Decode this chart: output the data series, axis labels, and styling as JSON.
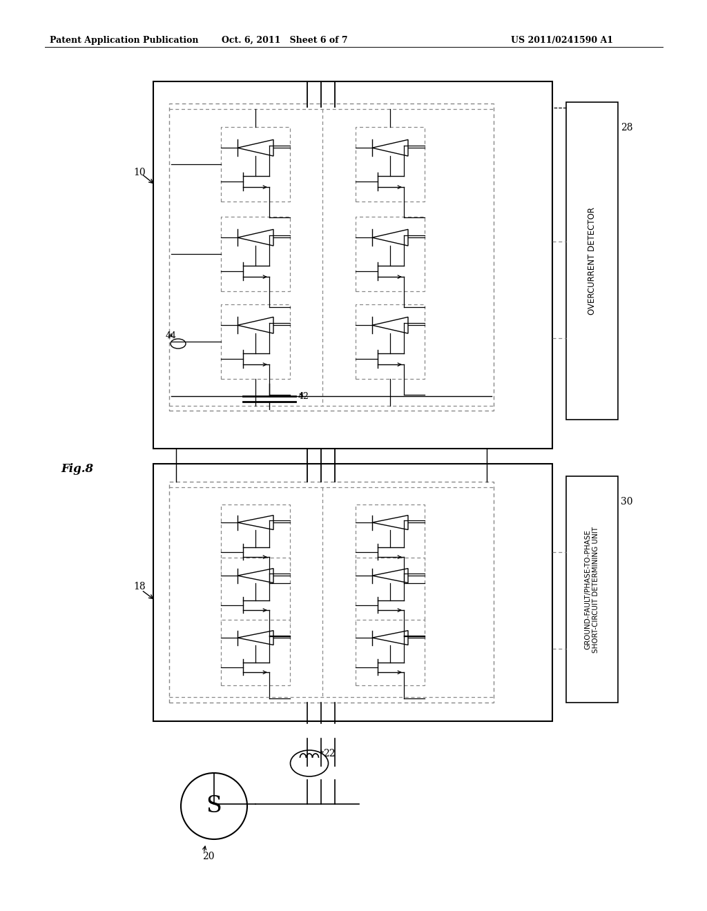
{
  "bg_color": "#ffffff",
  "header_left": "Patent Application Publication",
  "header_mid": "Oct. 6, 2011   Sheet 6 of 7",
  "header_right": "US 2011/0241590 A1",
  "fig_label": "Fig.8",
  "label_10": "10",
  "label_18": "18",
  "label_20": "20",
  "label_22": "22",
  "label_28": "28",
  "label_30": "30",
  "label_42": "42",
  "label_44": "44",
  "box_line_color": "#000000",
  "dashed_color": "#888888",
  "text_color": "#000000"
}
